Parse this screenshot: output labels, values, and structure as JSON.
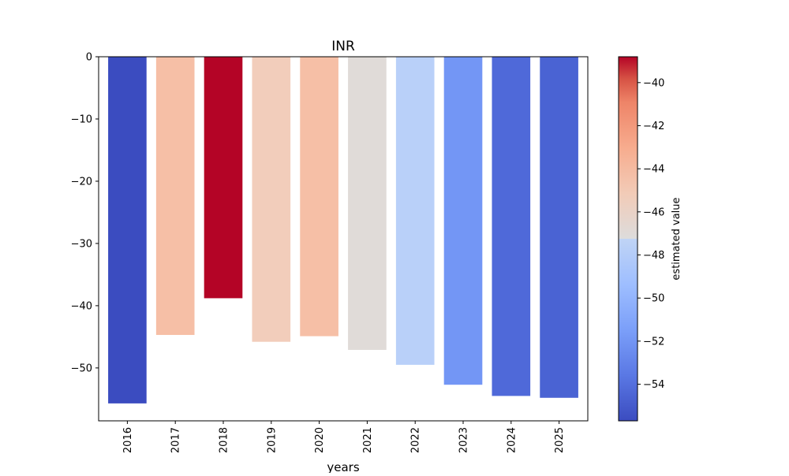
{
  "chart_data": {
    "type": "bar",
    "title": "INR",
    "xlabel": "years",
    "ylabel": "",
    "categories": [
      "2016",
      "2017",
      "2018",
      "2019",
      "2020",
      "2021",
      "2022",
      "2023",
      "2024",
      "2025"
    ],
    "values": [
      -55.7,
      -44.7,
      -38.8,
      -45.8,
      -44.9,
      -47.1,
      -49.5,
      -52.7,
      -54.5,
      -54.8
    ],
    "ylim": [
      -58.5,
      0
    ],
    "yticks": [
      "0",
      "−10",
      "−20",
      "−30",
      "−40",
      "−50"
    ],
    "colormap": "coolwarm",
    "colors": [
      "#3b4cc0",
      "#f6bfa6",
      "#b40426",
      "#f2cdbb",
      "#f6bfa6",
      "#e0dbd8",
      "#b9d0f9",
      "#7396f5",
      "#4f69d9",
      "#4a63d3"
    ],
    "colorbar": {
      "label": "estimated value",
      "range": [
        -55.7,
        -38.8
      ],
      "ticks": [
        "−40",
        "−42",
        "−44",
        "−46",
        "−48",
        "−50",
        "−52",
        "−54"
      ]
    }
  }
}
